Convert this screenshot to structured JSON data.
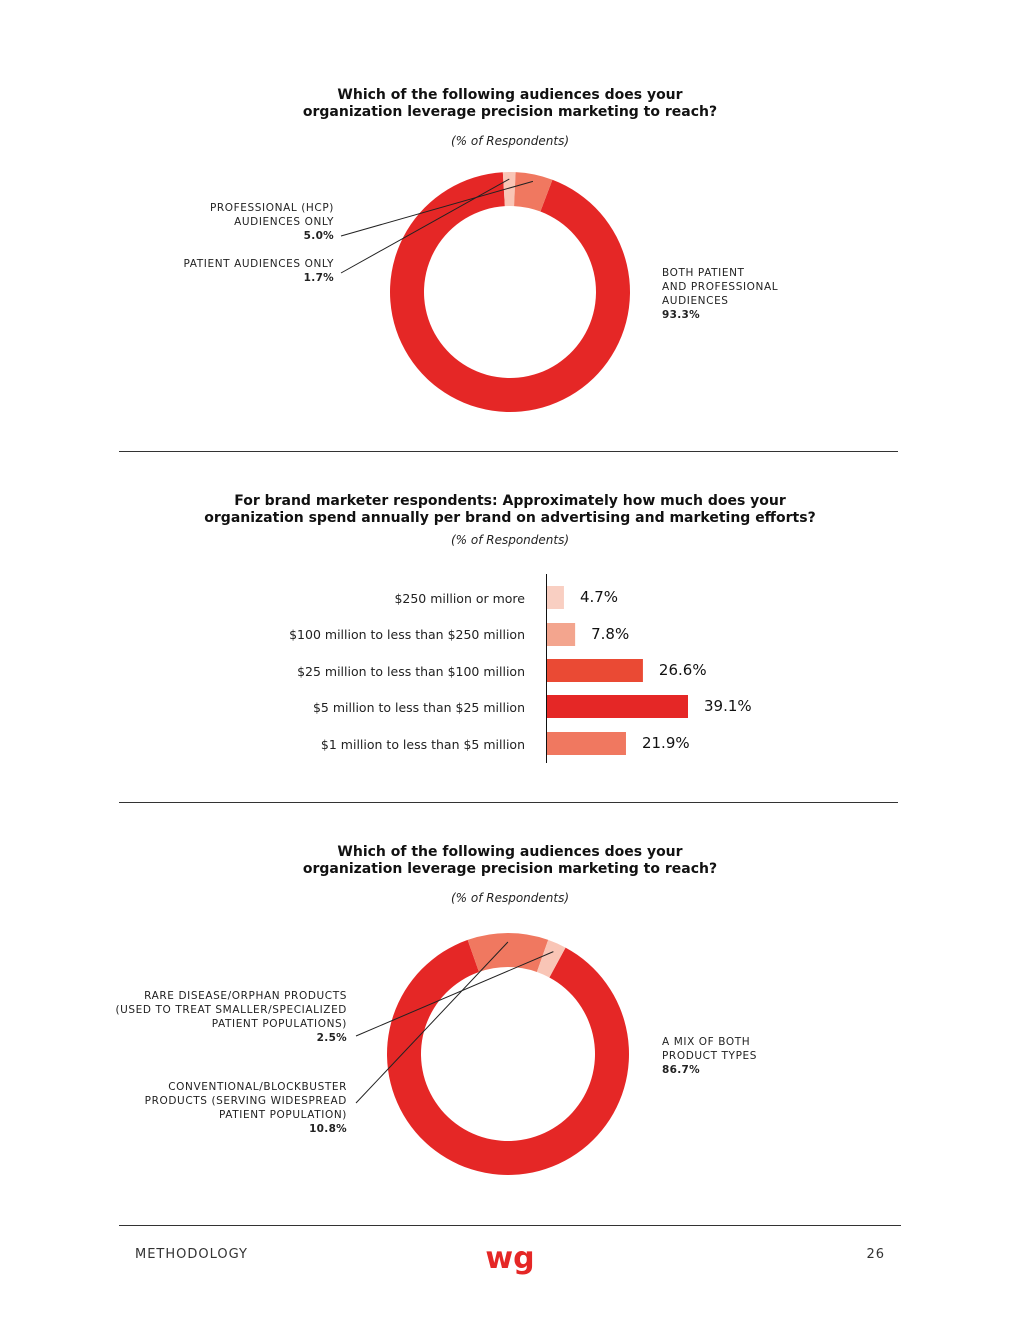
{
  "chart_data": [
    {
      "type": "pie",
      "title": "Which of the following audiences does your organization leverage precision marketing to reach?",
      "subtitle": "(% of Respondents)",
      "slices": [
        {
          "label": "BOTH PATIENT AND PROFESSIONAL AUDIENCES",
          "label_lines": [
            "BOTH PATIENT",
            "AND PROFESSIONAL",
            "AUDIENCES"
          ],
          "value": 93.3,
          "value_label": "93.3%",
          "color": "#e52726"
        },
        {
          "label": "PATIENT AUDIENCES ONLY",
          "label_lines": [
            "PATIENT AUDIENCES ONLY"
          ],
          "value": 1.7,
          "value_label": "1.7%",
          "color": "#f9c5b6"
        },
        {
          "label": "PROFESSIONAL (HCP) AUDIENCES ONLY",
          "label_lines": [
            "PROFESSIONAL (HCP)",
            "AUDIENCES ONLY"
          ],
          "value": 5.0,
          "value_label": "5.0%",
          "color": "#f07860"
        }
      ]
    },
    {
      "type": "bar",
      "orientation": "horizontal",
      "title": "For brand marketer respondents: Approximately how much does your organization spend annually per brand on advertising and marketing efforts?",
      "subtitle": "(% of Respondents)",
      "categories": [
        "$250 million or more",
        "$100 million to less than $250 million",
        "$25 million to less than $100 million",
        "$5 million to less than $25 million",
        "$1 million to less than $5 million"
      ],
      "values": [
        4.7,
        7.8,
        26.6,
        39.1,
        21.9
      ],
      "value_labels": [
        "4.7%",
        "7.8%",
        "26.6%",
        "39.1%",
        "21.9%"
      ],
      "colors": [
        "#f9cfc2",
        "#f3a58e",
        "#ea4a34",
        "#e52726",
        "#f07860"
      ],
      "xlim": [
        0,
        40
      ]
    },
    {
      "type": "pie",
      "title": "Which of the following audiences does your organization leverage precision marketing to reach?",
      "subtitle": "(% of Respondents)",
      "slices": [
        {
          "label": "A MIX OF BOTH PRODUCT TYPES",
          "label_lines": [
            "A MIX OF BOTH",
            "PRODUCT TYPES"
          ],
          "value": 86.7,
          "value_label": "86.7%",
          "color": "#e52726"
        },
        {
          "label": "CONVENTIONAL/BLOCKBUSTER PRODUCTS (SERVING WIDESPREAD PATIENT POPULATION)",
          "label_lines": [
            "CONVENTIONAL/BLOCKBUSTER",
            "PRODUCTS (SERVING WIDESPREAD",
            "PATIENT POPULATION)"
          ],
          "value": 10.8,
          "value_label": "10.8%",
          "color": "#f07860"
        },
        {
          "label": "RARE DISEASE/ORPHAN PRODUCTS (USED TO TREAT SMALLER/SPECIALIZED PATIENT POPULATIONS)",
          "label_lines": [
            "RARE DISEASE/ORPHAN PRODUCTS",
            "(USED TO TREAT SMALLER/SPECIALIZED",
            "PATIENT POPULATIONS)"
          ],
          "value": 2.5,
          "value_label": "2.5%",
          "color": "#f9c5b6"
        }
      ]
    }
  ],
  "footer": {
    "section": "METHODOLOGY",
    "logo_text": "wg",
    "page_number": "26"
  },
  "colors": {
    "accent": "#e52726",
    "rule": "#333333"
  }
}
